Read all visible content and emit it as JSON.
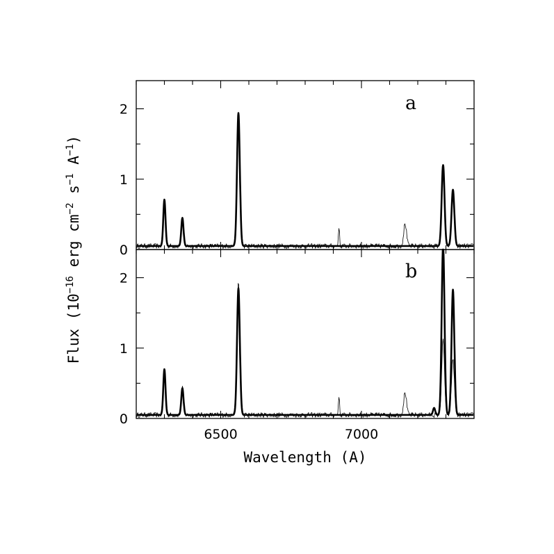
{
  "chart_data": [
    {
      "type": "line",
      "panel_label": "a",
      "xlabel": "Wavelength (A)",
      "ylabel": "Flux (10^-16 erg cm^-2 s^-1 A^-1)",
      "xlim": [
        6200,
        7400
      ],
      "ylim": [
        0,
        2.4
      ],
      "xticks": [
        6500,
        7000
      ],
      "yticks": [
        0,
        1,
        2
      ],
      "xminor_step": 100,
      "yminor_step": 0.5,
      "continuum": 0.05,
      "series": [
        {
          "role": "observed spectrum",
          "style": "thin",
          "lines": [
            {
              "center": 6300,
              "peak": 0.62,
              "sigma": 4
            },
            {
              "center": 6364,
              "peak": 0.4,
              "sigma": 4
            },
            {
              "center": 6563,
              "peak": 1.88,
              "sigma": 5
            },
            {
              "center": 6920,
              "peak": 0.28,
              "sigma": 2
            },
            {
              "center": 7155,
              "peak": 0.32,
              "sigma": 5
            },
            {
              "center": 7290,
              "peak": 1.05,
              "sigma": 5
            },
            {
              "center": 7325,
              "peak": 0.8,
              "sigma": 5
            }
          ]
        },
        {
          "role": "model spectrum",
          "style": "thick",
          "lines": [
            {
              "center": 6300,
              "peak": 0.66,
              "sigma": 4
            },
            {
              "center": 6364,
              "peak": 0.4,
              "sigma": 4
            },
            {
              "center": 6563,
              "peak": 1.89,
              "sigma": 5
            },
            {
              "center": 7290,
              "peak": 1.15,
              "sigma": 5
            },
            {
              "center": 7325,
              "peak": 0.8,
              "sigma": 5
            }
          ]
        }
      ]
    },
    {
      "type": "line",
      "panel_label": "b",
      "xlabel": "Wavelength (A)",
      "ylabel": "Flux (10^-16 erg cm^-2 s^-1 A^-1)",
      "xlim": [
        6200,
        7400
      ],
      "ylim": [
        0,
        2.4
      ],
      "xticks": [
        6500,
        7000
      ],
      "yticks": [
        0,
        1,
        2
      ],
      "xminor_step": 100,
      "yminor_step": 0.5,
      "continuum": 0.05,
      "series": [
        {
          "role": "observed spectrum",
          "style": "thin",
          "lines": [
            {
              "center": 6300,
              "peak": 0.62,
              "sigma": 4
            },
            {
              "center": 6364,
              "peak": 0.4,
              "sigma": 4
            },
            {
              "center": 6563,
              "peak": 1.88,
              "sigma": 5
            },
            {
              "center": 6920,
              "peak": 0.28,
              "sigma": 2
            },
            {
              "center": 7155,
              "peak": 0.32,
              "sigma": 5
            },
            {
              "center": 7290,
              "peak": 1.05,
              "sigma": 5
            },
            {
              "center": 7325,
              "peak": 0.8,
              "sigma": 5
            }
          ]
        },
        {
          "role": "model spectrum",
          "style": "thick",
          "lines": [
            {
              "center": 6300,
              "peak": 0.65,
              "sigma": 4
            },
            {
              "center": 6364,
              "peak": 0.38,
              "sigma": 4
            },
            {
              "center": 6563,
              "peak": 1.8,
              "sigma": 5
            },
            {
              "center": 7258,
              "peak": 0.1,
              "sigma": 4
            },
            {
              "center": 7290,
              "peak": 2.4,
              "sigma": 5
            },
            {
              "center": 7325,
              "peak": 1.78,
              "sigma": 5
            }
          ]
        }
      ]
    }
  ]
}
